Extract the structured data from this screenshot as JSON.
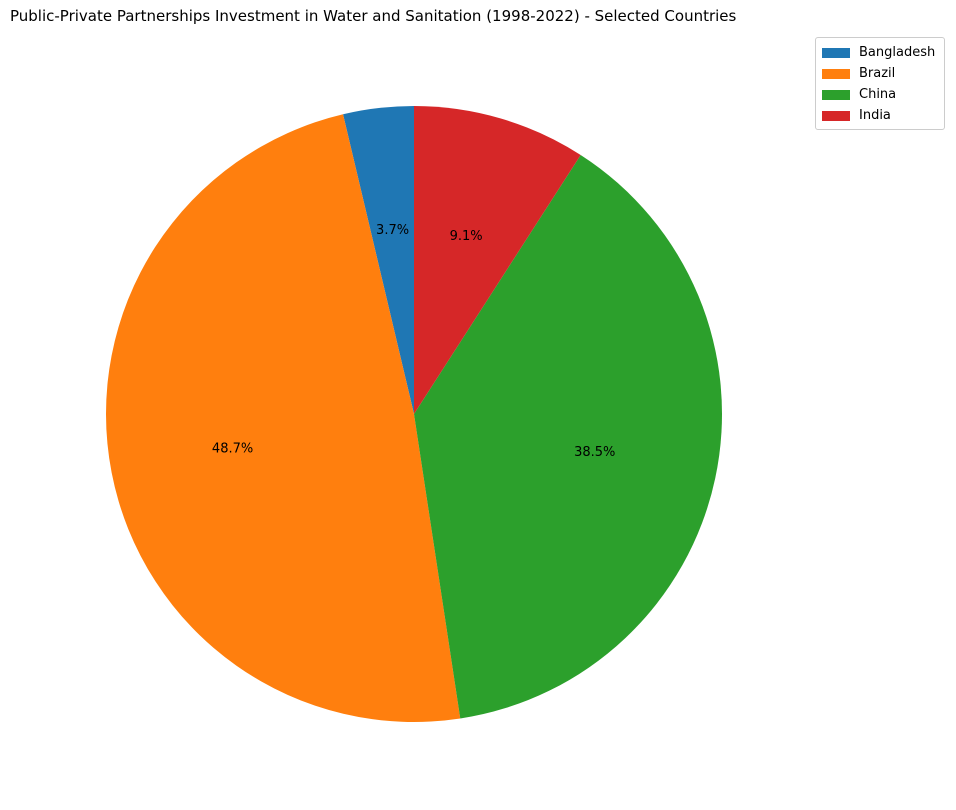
{
  "chart_data": {
    "type": "pie",
    "title": "Public-Private Partnerships Investment in Water and Sanitation (1998-2022) - Selected Countries",
    "categories": [
      "Bangladesh",
      "Brazil",
      "China",
      "India"
    ],
    "values": [
      3.7,
      48.7,
      38.5,
      9.1
    ],
    "labels": [
      "3.7%",
      "48.7%",
      "38.5%",
      "9.1%"
    ],
    "colors": [
      "#1f77b4",
      "#ff7f0e",
      "#2ca02c",
      "#d62728"
    ],
    "start_angle_deg": 90,
    "direction": "counterclockwise",
    "legend_position": "top-right"
  }
}
